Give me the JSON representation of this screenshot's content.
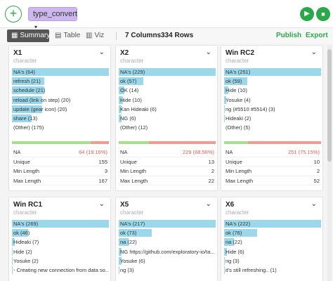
{
  "toolbar": {
    "add_label": "+",
    "command": "type_convert",
    "command_caret": "▾",
    "run_icon": "▶",
    "stop_icon": "■"
  },
  "viewbar": {
    "tabs": [
      {
        "label": "Summary",
        "icon": "▦"
      },
      {
        "label": "Table",
        "icon": "▤"
      },
      {
        "label": "Viz",
        "icon": "▥"
      }
    ],
    "columns_count": "7",
    "columns_label": "Columns",
    "rows_count": "334",
    "rows_label": "Rows",
    "publish_label": "Publish",
    "export_label": "Export"
  },
  "colors": {
    "accent": "#2aa84a",
    "bar": "#9bd8ec",
    "na_red": "#f39a92",
    "ok_green": "#a6e08a",
    "pill": "#cdb8ee"
  },
  "icons": {
    "chevron": "chevron-down-icon"
  },
  "cards": [
    {
      "name": "X1",
      "type": "character",
      "bars": [
        {
          "label": "NA's (64)",
          "frac": 1.0
        },
        {
          "label": "refresh (21)",
          "frac": 0.33
        },
        {
          "label": "schedule (21)",
          "frac": 0.33
        },
        {
          "label": "reload (link on step) (20)",
          "frac": 0.31
        },
        {
          "label": "update (gear icon) (20)",
          "frac": 0.31
        },
        {
          "label": "share (13)",
          "frac": 0.2
        },
        {
          "label": "(Other) (175)",
          "frac": 0
        }
      ],
      "na_frac": 0.1916,
      "stats": [
        {
          "key": "NA",
          "val": "64 (19.16%)",
          "na": true
        },
        {
          "key": "Unique",
          "val": "155"
        },
        {
          "key": "Min Length",
          "val": "3"
        },
        {
          "key": "Max Length",
          "val": "167"
        }
      ]
    },
    {
      "name": "X2",
      "type": "character",
      "bars": [
        {
          "label": "NA's (229)",
          "frac": 1.0
        },
        {
          "label": "ok (57)",
          "frac": 0.25
        },
        {
          "label": "OK (14)",
          "frac": 0.06
        },
        {
          "label": "Hide (10)",
          "frac": 0.04
        },
        {
          "label": "Kan Hideaki (6)",
          "frac": 0.03
        },
        {
          "label": "NG (6)",
          "frac": 0.03
        },
        {
          "label": "(Other) (12)",
          "frac": 0
        }
      ],
      "na_frac": 0.6856,
      "stats": [
        {
          "key": "NA",
          "val": "229 (68.56%)",
          "na": true
        },
        {
          "key": "Unique",
          "val": "13"
        },
        {
          "key": "Min Length",
          "val": "2"
        },
        {
          "key": "Max Length",
          "val": "22"
        }
      ]
    },
    {
      "name": "Win RC2",
      "type": "character",
      "bars": [
        {
          "label": "NA's (251)",
          "frac": 1.0
        },
        {
          "label": "ok (59)",
          "frac": 0.24
        },
        {
          "label": "Hide (10)",
          "frac": 0.04
        },
        {
          "label": "Yosuke (4)",
          "frac": 0.02
        },
        {
          "label": "ng (#5510 #5514) (3)",
          "frac": 0.01
        },
        {
          "label": "Hideaki (2)",
          "frac": 0.01
        },
        {
          "label": "(Other) (5)",
          "frac": 0
        }
      ],
      "na_frac": 0.7515,
      "stats": [
        {
          "key": "NA",
          "val": "251 (75.15%)",
          "na": true
        },
        {
          "key": "Unique",
          "val": "10"
        },
        {
          "key": "Min Length",
          "val": "2"
        },
        {
          "key": "Max Length",
          "val": "52"
        }
      ]
    },
    {
      "name": "Win RC1",
      "type": "character",
      "bars": [
        {
          "label": "NA's (269)",
          "frac": 1.0
        },
        {
          "label": "ok (46)",
          "frac": 0.17
        },
        {
          "label": "Hideaki (7)",
          "frac": 0.03
        },
        {
          "label": "Hide (2)",
          "frac": 0.01
        },
        {
          "label": "Yosuke (2)",
          "frac": 0.01
        },
        {
          "label": "- Creating new connection from data so...",
          "frac": 0.004
        }
      ]
    },
    {
      "name": "X5",
      "type": "character",
      "bars": [
        {
          "label": "NA's (217)",
          "frac": 1.0
        },
        {
          "label": "ok (73)",
          "frac": 0.34
        },
        {
          "label": "na (22)",
          "frac": 0.1
        },
        {
          "label": "NG https://github.com/exploratory-io/ta...",
          "frac": 0.03
        },
        {
          "label": "Yosuke (6)",
          "frac": 0.03
        },
        {
          "label": "ng (3)",
          "frac": 0.01
        }
      ]
    },
    {
      "name": "X6",
      "type": "character",
      "bars": [
        {
          "label": "NA's (222)",
          "frac": 1.0
        },
        {
          "label": "ok (76)",
          "frac": 0.34
        },
        {
          "label": "na (22)",
          "frac": 0.1
        },
        {
          "label": "Hide (6)",
          "frac": 0.03
        },
        {
          "label": "ng (3)",
          "frac": 0.01
        },
        {
          "label": "it's still refreshing.. (1)",
          "frac": 0.005
        }
      ]
    }
  ]
}
